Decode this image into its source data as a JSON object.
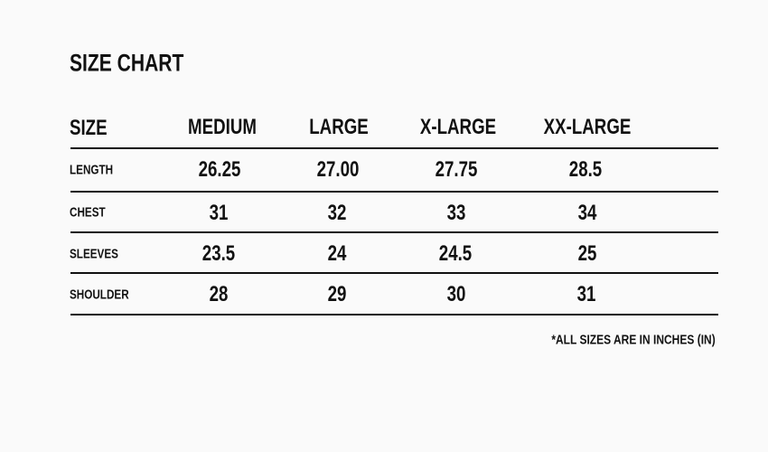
{
  "title": "SIZE CHART",
  "header": {
    "label": "SIZE",
    "columns": [
      "MEDIUM",
      "LARGE",
      "X-LARGE",
      "XX-LARGE"
    ]
  },
  "rows": [
    {
      "label": "LENGTH",
      "values": [
        "26.25",
        "27.00",
        "27.75",
        "28.5"
      ]
    },
    {
      "label": "CHEST",
      "values": [
        "31",
        "32",
        "33",
        "34"
      ]
    },
    {
      "label": "SLEEVES",
      "values": [
        "23.5",
        "24",
        "24.5",
        "25"
      ]
    },
    {
      "label": "SHOULDER",
      "values": [
        "28",
        "29",
        "30",
        "31"
      ]
    }
  ],
  "note": "*ALL SIZES ARE IN  INCHES (IN)"
}
